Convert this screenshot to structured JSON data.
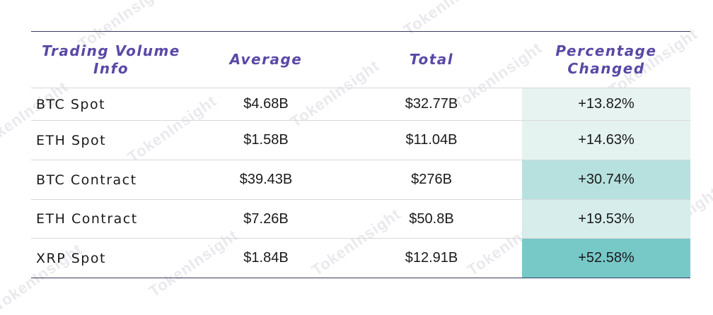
{
  "watermark_text": "TokenInsight",
  "chart_data": {
    "type": "table",
    "columns": [
      "Trading Volume Info",
      "Average",
      "Total",
      "Percentage Changed"
    ],
    "rows": [
      {
        "name": "BTC Spot",
        "average": "$4.68B",
        "total": "$32.77B",
        "change": "+13.82%",
        "change_value": 13.82
      },
      {
        "name": "ETH Spot",
        "average": "$1.58B",
        "total": "$11.04B",
        "change": "+14.63%",
        "change_value": 14.63
      },
      {
        "name": "BTC Contract",
        "average": "$39.43B",
        "total": "$276B",
        "change": "+30.74%",
        "change_value": 30.74
      },
      {
        "name": "ETH Contract",
        "average": "$7.26B",
        "total": "$50.8B",
        "change": "+19.53%",
        "change_value": 19.53
      },
      {
        "name": "XRP Spot",
        "average": "$1.84B",
        "total": "$12.91B",
        "change": "+52.58%",
        "change_value": 52.58
      }
    ],
    "heat_color_low": "#e6f3f1",
    "heat_color_high": "#77c9c8",
    "header_color": "#5a48a6"
  }
}
